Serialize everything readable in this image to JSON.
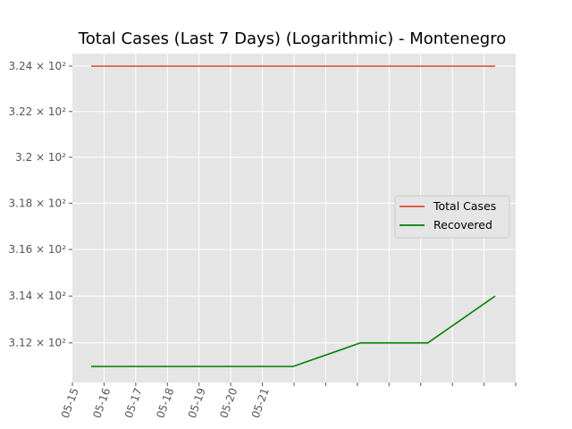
{
  "chart_data": {
    "type": "line",
    "title": "Total Cases (Last 7 Days) (Logarithmic) - Montenegro",
    "xlabel": "",
    "ylabel": "",
    "yscale": "log",
    "grid": true,
    "legend_position": "center-right",
    "x": [
      "05-15",
      "05-16",
      "05-17",
      "05-18",
      "05-19",
      "05-20",
      "05-21"
    ],
    "series": [
      {
        "name": "Total Cases",
        "color": "#E24A33",
        "values": [
          324,
          324,
          324,
          324,
          324,
          324,
          324
        ]
      },
      {
        "name": "Recovered",
        "color": "#008000",
        "values": [
          311,
          311,
          311,
          311,
          312,
          312,
          314
        ]
      }
    ],
    "yticks": [
      {
        "value": 324,
        "label": "3.24 × 10²"
      },
      {
        "value": 322,
        "label": "3.22 × 10²"
      },
      {
        "value": 320,
        "label": "3.2 × 10²"
      },
      {
        "value": 318,
        "label": "3.18 × 10²"
      },
      {
        "value": 316,
        "label": "3.16 × 10²"
      },
      {
        "value": 314,
        "label": "3.14 × 10²"
      },
      {
        "value": 312,
        "label": "3.12 × 10²"
      }
    ],
    "xtick_labels": [
      "05-15",
      "05-16",
      "05-17",
      "05-18",
      "05-19",
      "05-20",
      "05-21"
    ],
    "background": "#E5E5E5"
  }
}
